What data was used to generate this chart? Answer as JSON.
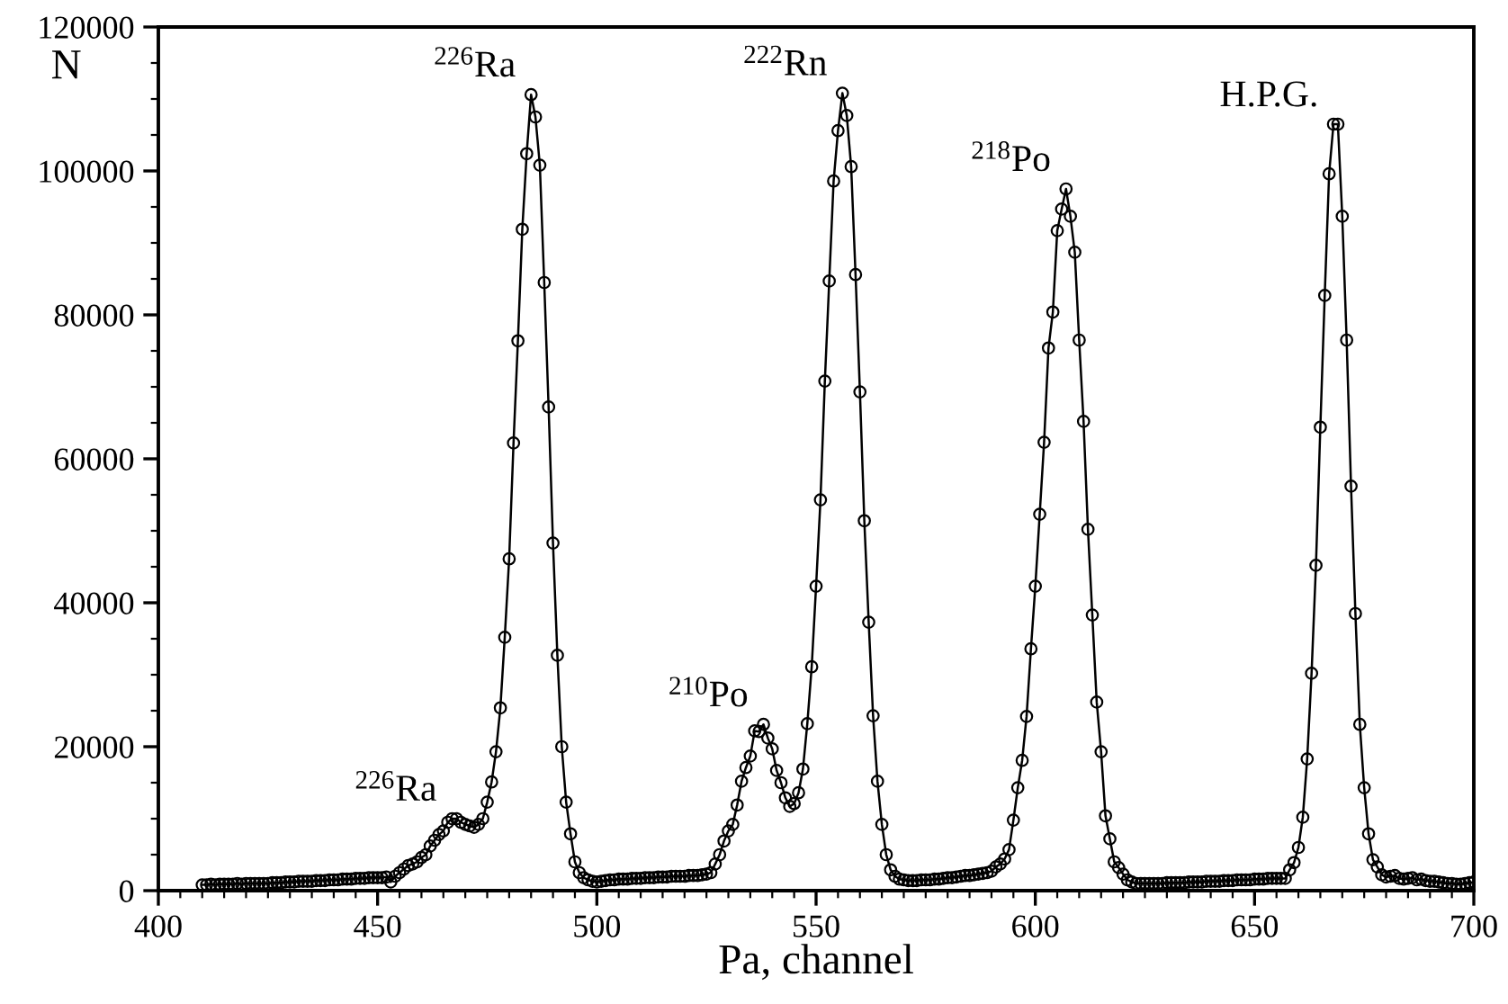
{
  "chart_data": {
    "type": "line",
    "xlabel": "Pa, channel",
    "ylabel": "N",
    "xlim": [
      400,
      700
    ],
    "ylim": [
      0,
      120000
    ],
    "xticks": [
      400,
      450,
      500,
      550,
      600,
      650,
      700
    ],
    "yticks": [
      0,
      20000,
      40000,
      60000,
      80000,
      100000,
      120000
    ],
    "grid": false,
    "marker": "circle",
    "line_style": "solid",
    "annotations": [
      {
        "text": "$^{226}$Ra",
        "x": 485,
        "y": 110600
      },
      {
        "text": "$^{226}$Ra",
        "x": 467,
        "y": 10000
      },
      {
        "text": "$^{210}$Po",
        "x": 538,
        "y": 23100
      },
      {
        "text": "$^{222}$Rn",
        "x": 556,
        "y": 110800
      },
      {
        "text": "$^{218}$Po",
        "x": 607,
        "y": 97500
      },
      {
        "text": "H.P.G.",
        "x": 668,
        "y": 106500
      }
    ],
    "series": [
      {
        "color": "#000000",
        "x": [
          410,
          411,
          412,
          413,
          414,
          415,
          416,
          417,
          418,
          419,
          420,
          421,
          422,
          423,
          424,
          425,
          426,
          427,
          428,
          429,
          430,
          431,
          432,
          433,
          434,
          435,
          436,
          437,
          438,
          439,
          440,
          441,
          442,
          443,
          444,
          445,
          446,
          447,
          448,
          449,
          450,
          451,
          452,
          453,
          454,
          455,
          456,
          457,
          458,
          459,
          460,
          461,
          462,
          463,
          464,
          465,
          466,
          467,
          468,
          469,
          470,
          471,
          472,
          473,
          474,
          475,
          476,
          477,
          478,
          479,
          480,
          481,
          482,
          483,
          484,
          485,
          486,
          487,
          488,
          489,
          490,
          491,
          492,
          493,
          494,
          495,
          496,
          497,
          498,
          499,
          500,
          501,
          502,
          503,
          504,
          505,
          506,
          507,
          508,
          509,
          510,
          511,
          512,
          513,
          514,
          515,
          516,
          517,
          518,
          519,
          520,
          521,
          522,
          523,
          524,
          525,
          526,
          527,
          528,
          529,
          530,
          531,
          532,
          533,
          534,
          535,
          536,
          537,
          538,
          539,
          540,
          541,
          542,
          543,
          544,
          545,
          546,
          547,
          548,
          549,
          550,
          551,
          552,
          553,
          554,
          555,
          556,
          557,
          558,
          559,
          560,
          561,
          562,
          563,
          564,
          565,
          566,
          567,
          568,
          569,
          570,
          571,
          572,
          573,
          574,
          575,
          576,
          577,
          578,
          579,
          580,
          581,
          582,
          583,
          584,
          585,
          586,
          587,
          588,
          589,
          590,
          591,
          592,
          593,
          594,
          595,
          596,
          597,
          598,
          599,
          600,
          601,
          602,
          603,
          604,
          605,
          606,
          607,
          608,
          609,
          610,
          611,
          612,
          613,
          614,
          615,
          616,
          617,
          618,
          619,
          620,
          621,
          622,
          623,
          624,
          625,
          626,
          627,
          628,
          629,
          630,
          631,
          632,
          633,
          634,
          635,
          636,
          637,
          638,
          639,
          640,
          641,
          642,
          643,
          644,
          645,
          646,
          647,
          648,
          649,
          650,
          651,
          652,
          653,
          654,
          655,
          656,
          657,
          658,
          659,
          660,
          661,
          662,
          663,
          664,
          665,
          666,
          667,
          668,
          669,
          670,
          671,
          672,
          673,
          674,
          675,
          676,
          677,
          678,
          679,
          680,
          681,
          682,
          683,
          684,
          685,
          686,
          687,
          688,
          689,
          690,
          691,
          692,
          693,
          694,
          695,
          696,
          697,
          698,
          699,
          700
        ],
        "values": [
          800,
          800,
          900,
          800,
          900,
          900,
          900,
          900,
          1000,
          900,
          1000,
          1000,
          1000,
          1000,
          1000,
          1000,
          1100,
          1100,
          1100,
          1200,
          1200,
          1200,
          1300,
          1300,
          1300,
          1300,
          1400,
          1400,
          1400,
          1500,
          1500,
          1500,
          1600,
          1600,
          1600,
          1700,
          1700,
          1700,
          1800,
          1800,
          1800,
          1800,
          1900,
          1200,
          2000,
          2500,
          3000,
          3500,
          3700,
          4000,
          4600,
          5000,
          6200,
          7000,
          7800,
          8300,
          9500,
          10000,
          10000,
          9500,
          9200,
          9000,
          8800,
          9200,
          10000,
          12300,
          15100,
          19300,
          25400,
          35200,
          46100,
          62200,
          76400,
          91900,
          102400,
          110600,
          107500,
          100800,
          84500,
          67200,
          48300,
          32700,
          20000,
          12300,
          7900,
          4000,
          2500,
          1800,
          1500,
          1300,
          1200,
          1300,
          1400,
          1500,
          1500,
          1600,
          1600,
          1600,
          1700,
          1700,
          1700,
          1800,
          1800,
          1800,
          1900,
          1900,
          1900,
          2000,
          2000,
          2000,
          2000,
          2100,
          2100,
          2100,
          2200,
          2300,
          2500,
          3700,
          5000,
          6900,
          8300,
          9200,
          11900,
          15200,
          17100,
          18700,
          22200,
          22100,
          23100,
          21200,
          19700,
          16700,
          15000,
          12900,
          11700,
          12100,
          13600,
          16900,
          23200,
          31100,
          42300,
          54300,
          70800,
          84700,
          98600,
          105600,
          110800,
          107700,
          100600,
          85600,
          69300,
          51400,
          37300,
          24300,
          15200,
          9200,
          5000,
          2900,
          2000,
          1600,
          1500,
          1400,
          1400,
          1400,
          1500,
          1500,
          1500,
          1600,
          1600,
          1700,
          1800,
          1800,
          1900,
          2000,
          2100,
          2100,
          2200,
          2300,
          2400,
          2500,
          2700,
          3300,
          3700,
          4400,
          5700,
          9800,
          14300,
          18100,
          24200,
          33600,
          42300,
          52300,
          62300,
          75400,
          80400,
          91700,
          94700,
          97500,
          93700,
          88700,
          76500,
          65200,
          50200,
          38300,
          26200,
          19300,
          10400,
          7200,
          4000,
          3200,
          2300,
          1500,
          1200,
          1000,
          1000,
          1000,
          1000,
          1000,
          1000,
          1000,
          1100,
          1100,
          1100,
          1100,
          1100,
          1200,
          1200,
          1200,
          1200,
          1300,
          1300,
          1300,
          1300,
          1400,
          1400,
          1400,
          1500,
          1500,
          1500,
          1500,
          1600,
          1600,
          1600,
          1700,
          1700,
          1700,
          1700,
          1700,
          2900,
          3900,
          6000,
          10200,
          18300,
          30200,
          45200,
          64400,
          82700,
          99600,
          106500,
          106500,
          93700,
          76500,
          56200,
          38500,
          23100,
          14300,
          7900,
          4300,
          3300,
          2200,
          1900,
          2000,
          2100,
          1700,
          1600,
          1700,
          1800,
          1500,
          1600,
          1400,
          1300,
          1300,
          1200,
          1100,
          1000,
          1000,
          900,
          900,
          1000,
          1100,
          1200
        ]
      }
    ]
  }
}
